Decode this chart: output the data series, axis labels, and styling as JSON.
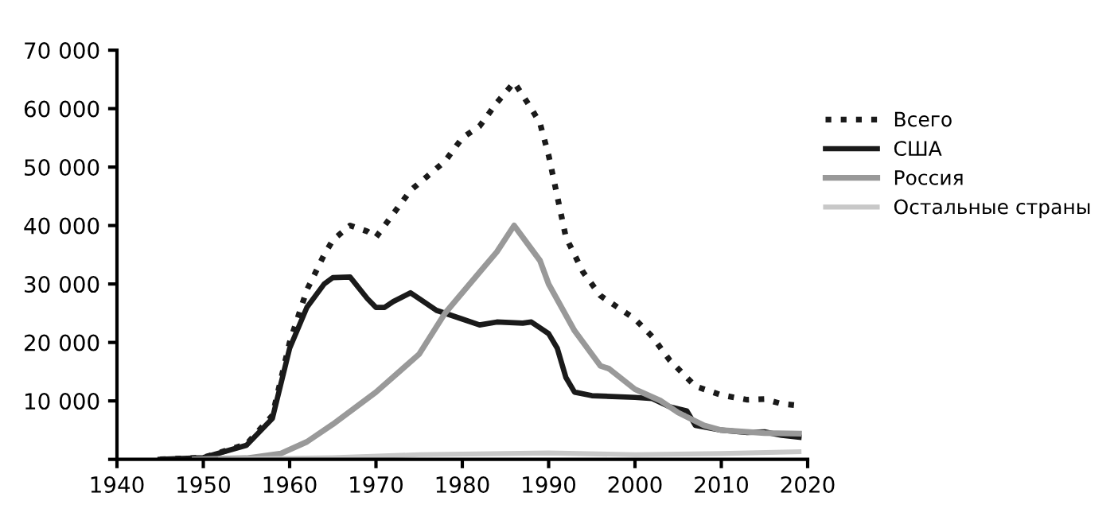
{
  "chart_data": {
    "type": "line",
    "xlim": [
      1940,
      2020
    ],
    "xticks": [
      1940,
      1950,
      1960,
      1970,
      1980,
      1990,
      2000,
      2010,
      2020
    ],
    "ylim": [
      0,
      70000
    ],
    "yticks": [
      {
        "value": 0,
        "label": null
      },
      {
        "value": 10000,
        "label": "10 000"
      },
      {
        "value": 20000,
        "label": "20 000"
      },
      {
        "value": 30000,
        "label": "30 000"
      },
      {
        "value": 40000,
        "label": "40 000"
      },
      {
        "value": 50000,
        "label": "50 000"
      },
      {
        "value": 60000,
        "label": "60 000"
      },
      {
        "value": 70000,
        "label": "70 000"
      }
    ],
    "grid": false,
    "legend": "right",
    "marker": "none",
    "series": [
      {
        "name": "Всего",
        "color": "#1a1a1a",
        "line_style": "dotted",
        "x": [
          1945,
          1950,
          1955,
          1958,
          1960,
          1962,
          1964,
          1965,
          1967,
          1969,
          1970,
          1972,
          1974,
          1976,
          1978,
          1980,
          1982,
          1984,
          1986,
          1988,
          1989,
          1990,
          1991,
          1992,
          1994,
          1996,
          1998,
          2000,
          2002,
          2004,
          2006,
          2007,
          2010,
          2013,
          2015,
          2017,
          2019
        ],
        "values": [
          0,
          300,
          2600,
          7500,
          20000,
          29000,
          35000,
          37500,
          40000,
          39000,
          38000,
          42000,
          46000,
          48500,
          51000,
          55000,
          57000,
          61000,
          64500,
          60000,
          57500,
          52000,
          45000,
          38000,
          32000,
          28000,
          26000,
          24000,
          21000,
          17000,
          14000,
          12500,
          11000,
          10200,
          10300,
          9500,
          9200
        ]
      },
      {
        "name": "США",
        "color": "#1a1a1a",
        "line_style": "solid",
        "x": [
          1945,
          1950,
          1955,
          1958,
          1960,
          1962,
          1964,
          1965,
          1967,
          1969,
          1970,
          1971,
          1972,
          1974,
          1975,
          1977,
          1980,
          1982,
          1984,
          1987,
          1988,
          1989,
          1990,
          1991,
          1992,
          1993,
          1995,
          2000,
          2002,
          2004,
          2006,
          2007,
          2010,
          2013,
          2015,
          2017,
          2019
        ],
        "values": [
          0,
          300,
          2400,
          7000,
          19000,
          26000,
          30000,
          31100,
          31200,
          27500,
          26000,
          26000,
          27000,
          28500,
          27500,
          25500,
          24000,
          23000,
          23500,
          23300,
          23500,
          22500,
          21500,
          19000,
          14000,
          11500,
          10900,
          10600,
          10400,
          9000,
          8300,
          5800,
          5000,
          4600,
          4700,
          4100,
          3800
        ]
      },
      {
        "name": "Россия",
        "color": "#999999",
        "line_style": "solid",
        "x": [
          1949,
          1955,
          1959,
          1962,
          1965,
          1970,
          1975,
          1978,
          1982,
          1984,
          1986,
          1989,
          1990,
          1993,
          1996,
          1997,
          2000,
          2003,
          2005,
          2008,
          2010,
          2015,
          2019
        ],
        "values": [
          0,
          200,
          1000,
          3000,
          6000,
          11500,
          18000,
          25000,
          32000,
          35500,
          40000,
          34000,
          30000,
          22000,
          16000,
          15500,
          12000,
          10000,
          8000,
          5800,
          5000,
          4500,
          4400
        ]
      },
      {
        "name": "Остальные страны",
        "color": "#c8c8c8",
        "line_style": "solid",
        "x": [
          1952,
          1965,
          1975,
          1985,
          1990,
          2000,
          2010,
          2019
        ],
        "values": [
          0,
          300,
          800,
          1000,
          1100,
          800,
          1000,
          1300
        ]
      }
    ]
  }
}
